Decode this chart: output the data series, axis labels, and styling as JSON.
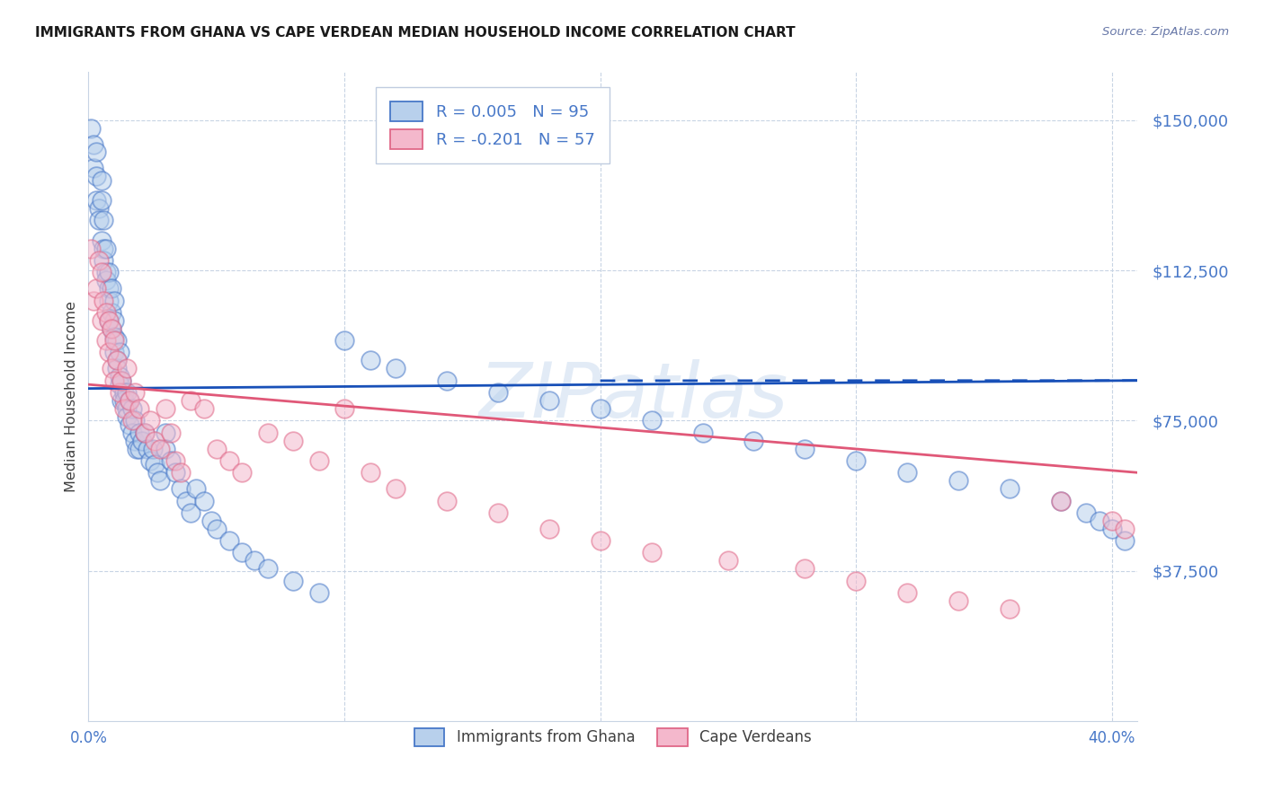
{
  "title": "IMMIGRANTS FROM GHANA VS CAPE VERDEAN MEDIAN HOUSEHOLD INCOME CORRELATION CHART",
  "source": "Source: ZipAtlas.com",
  "ylabel": "Median Household Income",
  "ytick_labels": [
    "$37,500",
    "$75,000",
    "$112,500",
    "$150,000"
  ],
  "ytick_values": [
    37500,
    75000,
    112500,
    150000
  ],
  "ymin": 0,
  "ymax": 162000,
  "xmin": 0.0,
  "xmax": 0.41,
  "xtick_values": [
    0.0,
    0.4
  ],
  "xtick_labels": [
    "0.0%",
    "40.0%"
  ],
  "xgrid_values": [
    0.1,
    0.2,
    0.3
  ],
  "legend_label_1": "Immigrants from Ghana",
  "legend_label_2": "Cape Verdeans",
  "legend_text_1": "R = 0.005   N = 95",
  "legend_text_2": "R = -0.201   N = 57",
  "color_blue_fill": "#b8d0ec",
  "color_blue_edge": "#4878c8",
  "color_pink_fill": "#f4b8cc",
  "color_pink_edge": "#e06888",
  "color_blue_line": "#1850b8",
  "color_pink_line": "#e05878",
  "color_blue_text": "#4878c8",
  "color_grid": "#c8d4e4",
  "watermark_text": "ZIPatlas",
  "watermark_color": "#c0d4ec",
  "ghana_x": [
    0.001,
    0.002,
    0.002,
    0.003,
    0.003,
    0.003,
    0.004,
    0.004,
    0.005,
    0.005,
    0.005,
    0.006,
    0.006,
    0.006,
    0.007,
    0.007,
    0.007,
    0.008,
    0.008,
    0.008,
    0.008,
    0.009,
    0.009,
    0.009,
    0.01,
    0.01,
    0.01,
    0.01,
    0.011,
    0.011,
    0.011,
    0.012,
    0.012,
    0.012,
    0.013,
    0.013,
    0.014,
    0.014,
    0.015,
    0.015,
    0.015,
    0.016,
    0.016,
    0.017,
    0.017,
    0.018,
    0.018,
    0.019,
    0.02,
    0.02,
    0.021,
    0.022,
    0.023,
    0.024,
    0.025,
    0.026,
    0.027,
    0.028,
    0.03,
    0.03,
    0.032,
    0.034,
    0.036,
    0.038,
    0.04,
    0.042,
    0.045,
    0.048,
    0.05,
    0.055,
    0.06,
    0.065,
    0.07,
    0.08,
    0.09,
    0.1,
    0.11,
    0.12,
    0.14,
    0.16,
    0.18,
    0.2,
    0.22,
    0.24,
    0.26,
    0.28,
    0.3,
    0.32,
    0.34,
    0.36,
    0.38,
    0.39,
    0.395,
    0.4,
    0.405
  ],
  "ghana_y": [
    148000,
    144000,
    138000,
    136000,
    142000,
    130000,
    128000,
    125000,
    135000,
    130000,
    120000,
    118000,
    125000,
    115000,
    112000,
    118000,
    110000,
    108000,
    112000,
    105000,
    100000,
    108000,
    102000,
    98000,
    105000,
    100000,
    96000,
    92000,
    95000,
    90000,
    88000,
    92000,
    86000,
    84000,
    80000,
    85000,
    82000,
    80000,
    78000,
    82000,
    76000,
    80000,
    74000,
    78000,
    72000,
    75000,
    70000,
    68000,
    72000,
    68000,
    70000,
    72000,
    68000,
    65000,
    68000,
    64000,
    62000,
    60000,
    72000,
    68000,
    65000,
    62000,
    58000,
    55000,
    52000,
    58000,
    55000,
    50000,
    48000,
    45000,
    42000,
    40000,
    38000,
    35000,
    32000,
    95000,
    90000,
    88000,
    85000,
    82000,
    80000,
    78000,
    75000,
    72000,
    70000,
    68000,
    65000,
    62000,
    60000,
    58000,
    55000,
    52000,
    50000,
    48000,
    45000
  ],
  "cv_x": [
    0.001,
    0.002,
    0.003,
    0.004,
    0.005,
    0.005,
    0.006,
    0.007,
    0.007,
    0.008,
    0.008,
    0.009,
    0.009,
    0.01,
    0.01,
    0.011,
    0.012,
    0.013,
    0.014,
    0.015,
    0.016,
    0.017,
    0.018,
    0.02,
    0.022,
    0.024,
    0.026,
    0.028,
    0.03,
    0.032,
    0.034,
    0.036,
    0.04,
    0.045,
    0.05,
    0.055,
    0.06,
    0.07,
    0.08,
    0.09,
    0.1,
    0.11,
    0.12,
    0.14,
    0.16,
    0.18,
    0.2,
    0.22,
    0.25,
    0.28,
    0.3,
    0.32,
    0.34,
    0.36,
    0.38,
    0.4,
    0.405
  ],
  "cv_y": [
    118000,
    105000,
    108000,
    115000,
    112000,
    100000,
    105000,
    102000,
    95000,
    100000,
    92000,
    98000,
    88000,
    95000,
    85000,
    90000,
    82000,
    85000,
    78000,
    88000,
    80000,
    75000,
    82000,
    78000,
    72000,
    75000,
    70000,
    68000,
    78000,
    72000,
    65000,
    62000,
    80000,
    78000,
    68000,
    65000,
    62000,
    72000,
    70000,
    65000,
    78000,
    62000,
    58000,
    55000,
    52000,
    48000,
    45000,
    42000,
    40000,
    38000,
    35000,
    32000,
    30000,
    28000,
    55000,
    50000,
    48000
  ]
}
